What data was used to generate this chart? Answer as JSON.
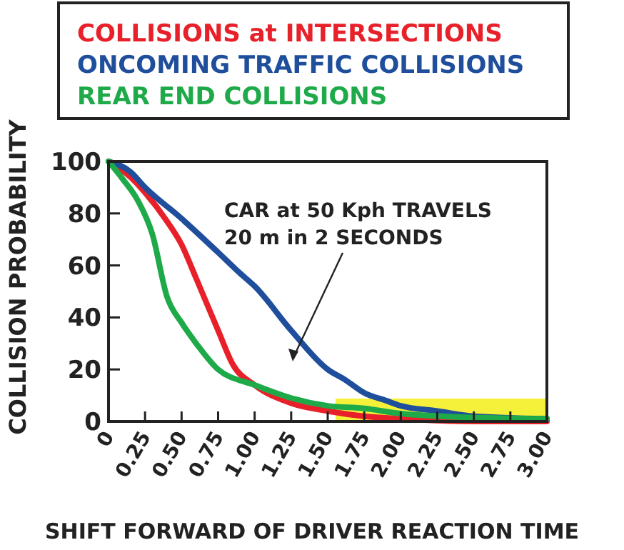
{
  "chart_data": {
    "type": "line",
    "xlabel": "SHIFT FORWARD OF DRIVER REACTION TIME",
    "ylabel": "COLLISION PROBABILITY",
    "legend": "top",
    "line_style": "solid",
    "marker": "none",
    "grid": false,
    "xlim": [
      0,
      3
    ],
    "xticks": [
      0,
      {
        "value": 0.25,
        "label": "0.25"
      },
      {
        "value": 0.5,
        "label": "0.50"
      },
      {
        "value": 0.75,
        "label": "0.75"
      },
      {
        "value": 1,
        "label": "1.00"
      },
      {
        "value": 1.25,
        "label": "1.25"
      },
      {
        "value": 1.5,
        "label": "1.50"
      },
      {
        "value": 1.75,
        "label": "1.75"
      },
      {
        "value": 2,
        "label": "2.00"
      },
      {
        "value": 2.25,
        "label": "2.25"
      },
      {
        "value": 2.5,
        "label": "2.50"
      },
      {
        "value": 2.75,
        "label": "2.75"
      },
      {
        "value": 3,
        "label": "3.00"
      }
    ],
    "ylim": [
      0,
      100
    ],
    "yticks": [
      0,
      20,
      40,
      60,
      80,
      100
    ],
    "annotations": [
      "CAR at 50 Kph TRAVELS\n20 m in 2 SECONDS"
    ],
    "series": [
      {
        "name": "COLLISIONS at INTERSECTIONS",
        "color": "#e8202a",
        "x": [
          0,
          0.15,
          0.25,
          0.4,
          0.5,
          0.6,
          0.75,
          0.85,
          1,
          1.25,
          1.5,
          1.75,
          2,
          2.5,
          3
        ],
        "values": [
          100,
          94,
          88,
          77,
          68,
          55,
          35,
          22,
          14,
          7,
          4,
          2,
          1,
          0,
          0
        ]
      },
      {
        "name": "ONCOMING TRAFFIC COLLISIONS",
        "color": "#1f4e9c",
        "x": [
          0,
          0.15,
          0.25,
          0.5,
          0.75,
          0.9,
          1,
          1.25,
          1.5,
          1.62,
          1.75,
          1.9,
          2,
          2.25,
          2.5,
          3
        ],
        "values": [
          100,
          96,
          90,
          78,
          65,
          57,
          52,
          35,
          20,
          16,
          11,
          8,
          6,
          4,
          2,
          1
        ]
      },
      {
        "name": "REAR END COLLISIONS",
        "color": "#1faa4a",
        "x": [
          0,
          0.1,
          0.2,
          0.3,
          0.4,
          0.5,
          0.6,
          0.75,
          1,
          1.25,
          1.5,
          1.75,
          2,
          2.5,
          3
        ],
        "values": [
          100,
          93,
          85,
          72,
          48,
          38,
          30,
          20,
          14,
          9,
          6,
          5,
          3,
          1.5,
          1
        ]
      }
    ]
  }
}
